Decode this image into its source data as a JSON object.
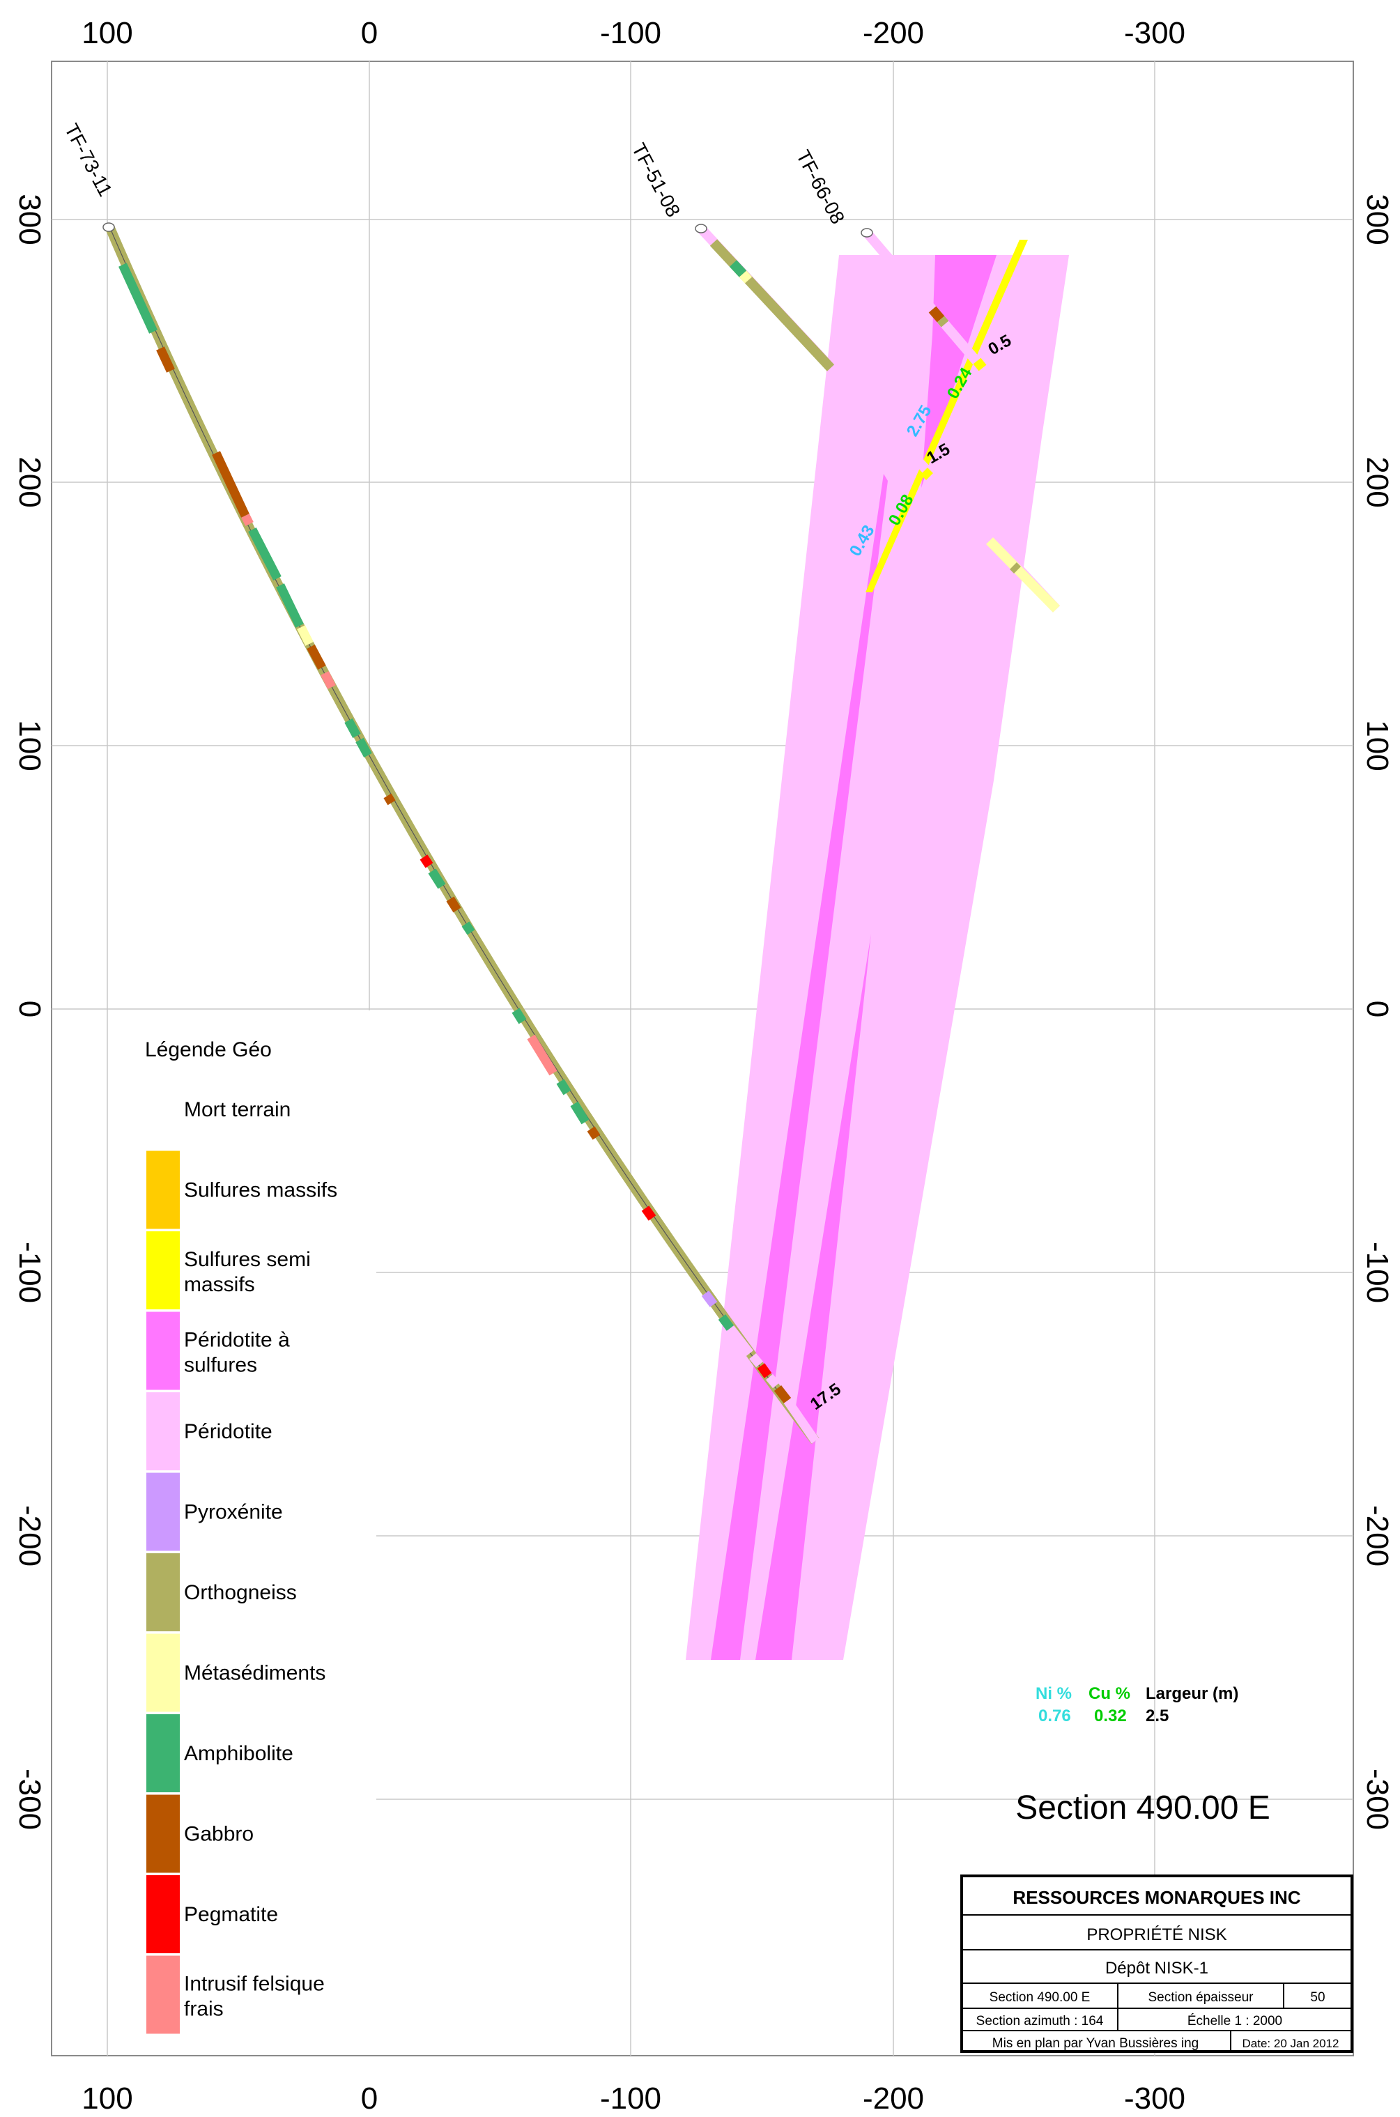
{
  "axes": {
    "x_ticks": [
      "100",
      "0",
      "-100",
      "-200",
      "-300"
    ],
    "y_ticks": [
      "300",
      "200",
      "100",
      "0",
      "-100",
      "-200",
      "-300"
    ]
  },
  "holes": [
    {
      "name": "TF-73-11"
    },
    {
      "name": "TF-51-08"
    },
    {
      "name": "TF-66-08"
    }
  ],
  "intervals": {
    "tf5108": {
      "ni": "0.43",
      "cu": "0.08",
      "width": "1.5"
    },
    "tf6608": {
      "ni": "2.75",
      "cu": "0.24",
      "width": "0.5"
    },
    "tf7311": {
      "width": "17.5"
    }
  },
  "interval_legend": {
    "ni_header": "Ni %",
    "cu_header": "Cu %",
    "width_header": "Largeur (m)",
    "ni_value": "0.76",
    "cu_value": "0.32",
    "width_value": "2.5"
  },
  "legend": {
    "title": "Légende Géo",
    "items": [
      {
        "label": "Mort terrain",
        "color": "#ffffff"
      },
      {
        "label": "Sulfures massifs",
        "color": "#ffcc00"
      },
      {
        "label": "Sulfures semi massifs",
        "color": "#ffff00"
      },
      {
        "label": "Péridotite à sulfures",
        "color": "#ff77ff"
      },
      {
        "label": "Péridotite",
        "color": "#ffc0ff"
      },
      {
        "label": "Pyroxénite",
        "color": "#cc99ff"
      },
      {
        "label": "Orthogneiss",
        "color": "#b0b060"
      },
      {
        "label": "Métasédiments",
        "color": "#ffffaa"
      },
      {
        "label": "Amphibolite",
        "color": "#3cb371"
      },
      {
        "label": "Gabbro",
        "color": "#b85500"
      },
      {
        "label": "Pegmatite",
        "color": "#ff0000"
      },
      {
        "label": "Intrusif felsique frais",
        "color": "#ff8888"
      }
    ]
  },
  "section_title": "Section 490.00 E",
  "title_block": {
    "company": "RESSOURCES MONARQUES INC",
    "property": "PROPRIÉTÉ NISK",
    "deposit": "Dépôt NISK-1",
    "section": "Section 490.00 E",
    "thickness_label": "Section épaisseur",
    "thickness_value": "50",
    "azimuth": "Section azimuth : 164",
    "scale": "Échelle     1 : 2000",
    "author": "Mis en plan par Yvan Bussières ing",
    "date": "Date: 20 Jan 2012"
  }
}
